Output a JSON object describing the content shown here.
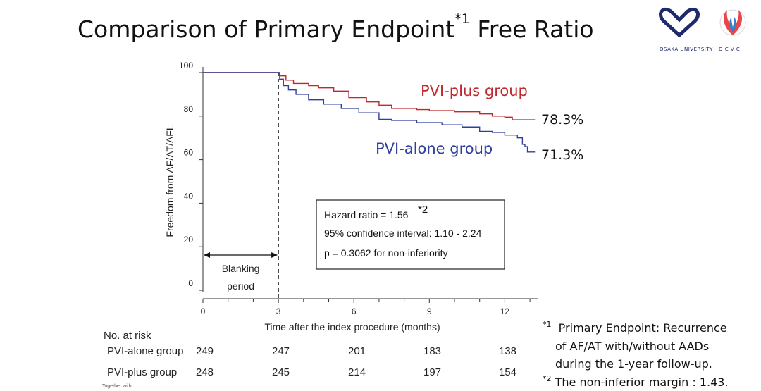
{
  "title": {
    "main": "Comparison of Primary Endpoint",
    "sup": "*1",
    "tail": " Free Ratio"
  },
  "logos": {
    "university": "OSAKA UNIVERSITY",
    "ocvc": "O C V C"
  },
  "chart_data": {
    "type": "line",
    "ylabel": "Freedom from AF/AT/AFL",
    "xlabel": "Time after the index procedure (months)",
    "xlim": [
      0,
      13.5
    ],
    "ylim": [
      0,
      100
    ],
    "x_ticks": [
      0,
      3,
      6,
      9,
      12
    ],
    "y_ticks": [
      0,
      20,
      40,
      60,
      80,
      100
    ],
    "series": [
      {
        "name": "PVI-plus group",
        "color": "#c0282d",
        "final_label": "78.3%",
        "points": [
          [
            0,
            100
          ],
          [
            3,
            100
          ],
          [
            3.05,
            98.5
          ],
          [
            3.3,
            96.5
          ],
          [
            3.6,
            95
          ],
          [
            4.2,
            94
          ],
          [
            4.6,
            93
          ],
          [
            5.2,
            91.5
          ],
          [
            5.8,
            88.5
          ],
          [
            6.5,
            86.5
          ],
          [
            7,
            85
          ],
          [
            7.5,
            83.5
          ],
          [
            8.5,
            83
          ],
          [
            9,
            82.5
          ],
          [
            10,
            82
          ],
          [
            11,
            81
          ],
          [
            11.5,
            80
          ],
          [
            12,
            79.5
          ],
          [
            12.3,
            78.3
          ],
          [
            13.2,
            78.3
          ]
        ]
      },
      {
        "name": "PVI-alone group",
        "color": "#2e3f9e",
        "final_label": "71.3%",
        "points": [
          [
            0,
            100
          ],
          [
            3,
            100
          ],
          [
            3.05,
            97
          ],
          [
            3.2,
            94
          ],
          [
            3.4,
            92
          ],
          [
            3.7,
            90
          ],
          [
            4.2,
            87.5
          ],
          [
            4.8,
            85.5
          ],
          [
            5.5,
            83.5
          ],
          [
            6.2,
            81.5
          ],
          [
            7,
            78.5
          ],
          [
            7.5,
            78
          ],
          [
            8.5,
            77
          ],
          [
            9.5,
            76
          ],
          [
            10.3,
            75
          ],
          [
            11,
            73
          ],
          [
            11.5,
            72.5
          ],
          [
            12,
            71.3
          ],
          [
            12.5,
            70
          ],
          [
            12.7,
            67
          ],
          [
            12.8,
            66
          ],
          [
            12.9,
            63.5
          ],
          [
            13.2,
            63.5
          ]
        ]
      }
    ],
    "blanking": {
      "label_line1": "Blanking",
      "label_line2": "period",
      "x_start": 0,
      "x_end": 3
    },
    "hazard_box": {
      "line1": "Hazard ratio = 1.56",
      "line1_sup": "*2",
      "line2": "95% confidence interval: 1.10 - 2.24",
      "line3": "p = 0.3062 for non-inferiority"
    }
  },
  "risk_table": {
    "header": "No. at risk",
    "rows": [
      {
        "label": "PVI-alone group",
        "values": [
          "249",
          "247",
          "201",
          "183",
          "138"
        ]
      },
      {
        "label": "PVI-plus group",
        "values": [
          "248",
          "245",
          "214",
          "197",
          "154"
        ]
      }
    ]
  },
  "footnotes": {
    "n1_mark": "*1",
    "n1_line1": "Primary Endpoint: Recurrence",
    "n1_line2": "of AF/AT with/without AADs",
    "n1_line3": "during the 1-year follow-up.",
    "n2_mark": "*2",
    "n2_text": "The non-inferior margin : 1.43."
  },
  "tiny_text": "Together with"
}
